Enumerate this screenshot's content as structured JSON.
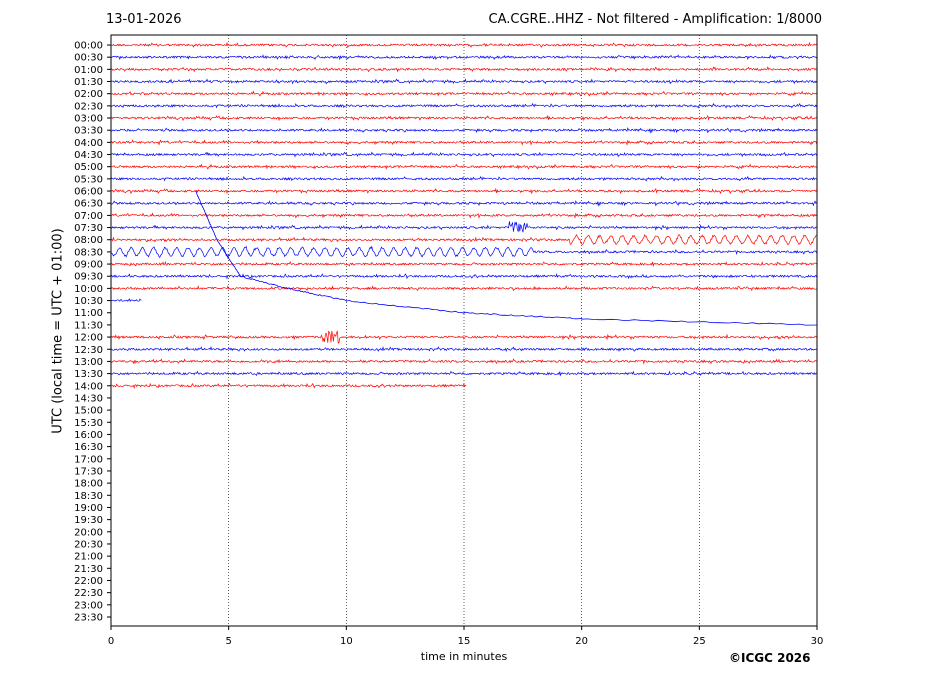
{
  "header": {
    "date": "13-01-2026",
    "title": "CA.CGRE..HHZ - Not filtered - Amplification: 1/8000"
  },
  "footer": {
    "copyright": "©ICGC 2026"
  },
  "chart_data": {
    "type": "line",
    "title": "CA.CGRE..HHZ - Not filtered - Amplification: 1/8000",
    "xlabel": "time in minutes",
    "ylabel": "UTC (local time = UTC + 01:00)",
    "xlim": [
      0,
      30
    ],
    "x_ticks": [
      0,
      5,
      10,
      15,
      20,
      25,
      30
    ],
    "y_ticks": [
      "00:00",
      "00:30",
      "01:00",
      "01:30",
      "02:00",
      "02:30",
      "03:00",
      "03:30",
      "04:00",
      "04:30",
      "05:00",
      "05:30",
      "06:00",
      "06:30",
      "07:00",
      "07:30",
      "08:00",
      "08:30",
      "09:00",
      "09:30",
      "10:00",
      "10:30",
      "11:00",
      "11:30",
      "12:00",
      "12:30",
      "13:00",
      "13:30",
      "14:00",
      "14:30",
      "15:00",
      "15:30",
      "16:00",
      "16:30",
      "17:00",
      "17:30",
      "18:00",
      "18:30",
      "19:00",
      "19:30",
      "20:00",
      "20:30",
      "21:00",
      "21:30",
      "22:00",
      "22:30",
      "23:00",
      "23:30"
    ],
    "grid": "vertical dotted lines at each x tick",
    "colors": {
      "even_rows": "#ff0000",
      "odd_rows": "#0000ff"
    },
    "traces": [
      {
        "row": "00:00",
        "start": 0,
        "end": 30
      },
      {
        "row": "00:30",
        "start": 0,
        "end": 30
      },
      {
        "row": "01:00",
        "start": 0,
        "end": 30
      },
      {
        "row": "01:30",
        "start": 0,
        "end": 30
      },
      {
        "row": "02:00",
        "start": 0,
        "end": 30
      },
      {
        "row": "02:30",
        "start": 0,
        "end": 30
      },
      {
        "row": "03:00",
        "start": 0,
        "end": 30
      },
      {
        "row": "03:30",
        "start": 0,
        "end": 30
      },
      {
        "row": "04:00",
        "start": 0,
        "end": 30
      },
      {
        "row": "04:30",
        "start": 0,
        "end": 30
      },
      {
        "row": "05:00",
        "start": 0,
        "end": 30
      },
      {
        "row": "05:30",
        "start": 0,
        "end": 30
      },
      {
        "row": "06:00",
        "start": 0,
        "end": 30
      },
      {
        "row": "06:30",
        "start": 0,
        "end": 30
      },
      {
        "row": "07:00",
        "start": 0,
        "end": 30
      },
      {
        "row": "07:30",
        "start": 0,
        "end": 30,
        "event_at": 17.3
      },
      {
        "row": "08:00",
        "start": 0,
        "end": 30,
        "oscillation_from": 19.5
      },
      {
        "row": "08:30",
        "start": 0,
        "end": 30,
        "oscillation_from": 0,
        "oscillation_to": 18
      },
      {
        "row": "09:00",
        "start": 0,
        "end": 30
      },
      {
        "row": "09:30",
        "start": 0,
        "end": 30
      },
      {
        "row": "10:00",
        "start": 0,
        "end": 30
      },
      {
        "row": "10:30",
        "start": 0,
        "end": 1.3
      },
      {
        "row": "12:00",
        "start": 0,
        "end": 30,
        "event_at": 9.3
      },
      {
        "row": "12:30",
        "start": 0,
        "end": 30
      },
      {
        "row": "13:00",
        "start": 0,
        "end": 30
      },
      {
        "row": "13:30",
        "start": 0,
        "end": 30
      },
      {
        "row": "14:00",
        "start": 0,
        "end": 15.1
      }
    ],
    "drift_trace": {
      "color": "#0000ff",
      "description_points": [
        {
          "x": 3.6,
          "row": "06:00"
        },
        {
          "x": 4.5,
          "row": "08:00"
        },
        {
          "x": 5.5,
          "row": "09:30"
        },
        {
          "x": 7.5,
          "row": "10:00"
        },
        {
          "x": 10,
          "row": "10:30"
        },
        {
          "x": 15,
          "row": "11:00"
        },
        {
          "x": 20,
          "row": "11:15"
        },
        {
          "x": 30,
          "row": "11:30"
        }
      ]
    }
  }
}
